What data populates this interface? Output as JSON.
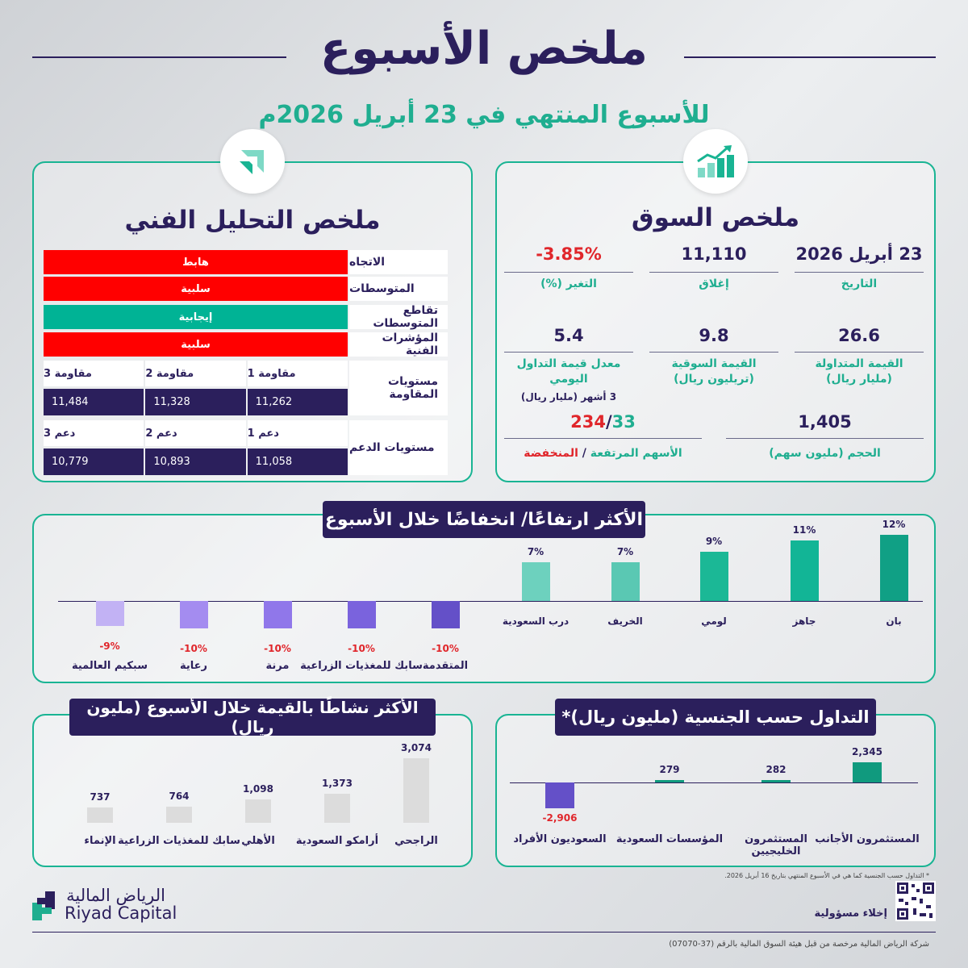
{
  "header": {
    "title": "ملخص الأسبوع",
    "subtitle": "للأسبوع المنتهي في 23 أبريل 2026م"
  },
  "technical": {
    "title": "ملخص التحليل الفني",
    "rows": [
      {
        "label": "الاتجاه",
        "value": "هابط",
        "status": "negative"
      },
      {
        "label": "المتوسطات",
        "value": "سلبية",
        "status": "negative"
      },
      {
        "label": "تقاطع المتوسطات",
        "value": "إيجابية",
        "status": "positive"
      },
      {
        "label": "المؤشرات الفنية",
        "value": "سلبية",
        "status": "negative"
      }
    ],
    "resistance": {
      "label": "مستويات المقاومة",
      "headers": [
        "مقاومة 1",
        "مقاومة 2",
        "مقاومة 3"
      ],
      "values": [
        "11,262",
        "11,328",
        "11,484"
      ]
    },
    "support": {
      "label": "مستويات الدعم",
      "headers": [
        "دعم 1",
        "دعم 2",
        "دعم 3"
      ],
      "values": [
        "11,058",
        "10,893",
        "10,779"
      ]
    }
  },
  "market": {
    "title": "ملخص السوق",
    "date": {
      "value": "23 أبريل 2026",
      "label": "التاريخ"
    },
    "close": {
      "value": "11,110",
      "label": "إغلاق"
    },
    "change": {
      "value": "-3.85%",
      "label": "التغير (%)"
    },
    "traded_value": {
      "value": "26.6",
      "label": "القيمة المتداولة",
      "sub": "(مليار ريال)"
    },
    "market_cap": {
      "value": "9.8",
      "label": "القيمة السوقية",
      "sub": "(تريليون ريال)"
    },
    "avg_daily": {
      "value": "5.4",
      "label1": "معدل قيمة التداول",
      "label2": "اليومي",
      "sub": "3 أشهر (مليار ريال)"
    },
    "volume": {
      "value": "1,405",
      "label": "الحجم (مليون سهم)"
    },
    "advancers": "33",
    "decliners": "234",
    "adv_dec_sep": "/",
    "adv_label": "الأسهم المرتفعة",
    "dec_label": "المنخفضة",
    "adv_dec_slash": " / "
  },
  "movers": {
    "title": "الأكثر ارتفاعًا/ انخفاضًا خلال الأسبوع",
    "gainers": [
      {
        "name": "بان",
        "value": 12,
        "label": "12%",
        "color": "#10a085"
      },
      {
        "name": "جاهز",
        "value": 11,
        "label": "11%",
        "color": "#12b596"
      },
      {
        "name": "لومي",
        "value": 9,
        "label": "9%",
        "color": "#1bb896"
      },
      {
        "name": "الخريف",
        "value": 7,
        "label": "7%",
        "color": "#5ac8b3"
      },
      {
        "name": "درب السعودية",
        "value": 7,
        "label": "7%",
        "color": "#6dd1be"
      }
    ],
    "losers": [
      {
        "name": "المتقدمة",
        "value": -10,
        "label": "-10%",
        "color": "#6450c8"
      },
      {
        "name": "سابك للمغذيات الزراعية",
        "value": -10,
        "label": "-10%",
        "color": "#7a63dd"
      },
      {
        "name": "مرنة",
        "value": -10,
        "label": "-10%",
        "color": "#9077ea"
      },
      {
        "name": "رعاية",
        "value": -10,
        "label": "-10%",
        "color": "#a48cf0"
      },
      {
        "name": "سبكيم العالمية",
        "value": -9,
        "label": "-9%",
        "color": "#c2b2f4"
      }
    ]
  },
  "nationality": {
    "title": "التداول حسب الجنسية (مليون ريال)*",
    "items": [
      {
        "name": "المستثمرون الأجانب",
        "value": 2345,
        "label": "2,345",
        "color": "#109a7e"
      },
      {
        "name": "المستثمرون الخليجيين",
        "value": 282,
        "label": "282",
        "color": "#109a7e"
      },
      {
        "name": "المؤسسات السعودية",
        "value": 279,
        "label": "279",
        "color": "#109a7e"
      },
      {
        "name": "السعوديون الأفراد",
        "value": -2906,
        "label": "-2,906",
        "color": "#6450c8"
      }
    ],
    "footnote": "* التداول حسب الجنسية كما هي في الأسبوع المنتهي بتاريخ 16 أبريل 2026."
  },
  "active": {
    "title": "الأكثر نشاطًا بالقيمة خلال الأسبوع (مليون ريال)",
    "items": [
      {
        "name": "الراجحي",
        "value": 3074,
        "label": "3,074"
      },
      {
        "name": "أرامكو السعودية",
        "value": 1373,
        "label": "1,373"
      },
      {
        "name": "الأهلي",
        "value": 1098,
        "label": "1,098"
      },
      {
        "name": "سابك للمغذيات الزراعية",
        "value": 764,
        "label": "764"
      },
      {
        "name": "الإنماء",
        "value": 737,
        "label": "737"
      }
    ]
  },
  "footer": {
    "brand_ar": "الرياض المالية",
    "brand_en": "Riyad Capital",
    "disclaimer": "إخلاء مسؤولية",
    "license": "شركة الرياض المالية مرخصة من قبل هيئة السوق المالية بالرقم (37-07070)"
  },
  "chart_data": [
    {
      "type": "bar",
      "title": "الأكثر ارتفاعًا/ انخفاضًا خلال الأسبوع",
      "categories": [
        "بان",
        "جاهز",
        "لومي",
        "الخريف",
        "درب السعودية",
        "المتقدمة",
        "سابك للمغذيات الزراعية",
        "مرنة",
        "رعاية",
        "سبكيم العالمية"
      ],
      "values": [
        12,
        11,
        9,
        7,
        7,
        -10,
        -10,
        -10,
        -10,
        -9
      ]
    },
    {
      "type": "bar",
      "title": "التداول حسب الجنسية (مليون ريال)*",
      "categories": [
        "المستثمرون الأجانب",
        "المستثمرون الخليجيين",
        "المؤسسات السعودية",
        "السعوديون الأفراد"
      ],
      "values": [
        2345,
        282,
        279,
        -2906
      ]
    },
    {
      "type": "bar",
      "title": "الأكثر نشاطًا بالقيمة خلال الأسبوع (مليون ريال)",
      "categories": [
        "الراجحي",
        "أرامكو السعودية",
        "الأهلي",
        "سابك للمغذيات الزراعية",
        "الإنماء"
      ],
      "values": [
        3074,
        1373,
        1098,
        764,
        737
      ]
    }
  ]
}
